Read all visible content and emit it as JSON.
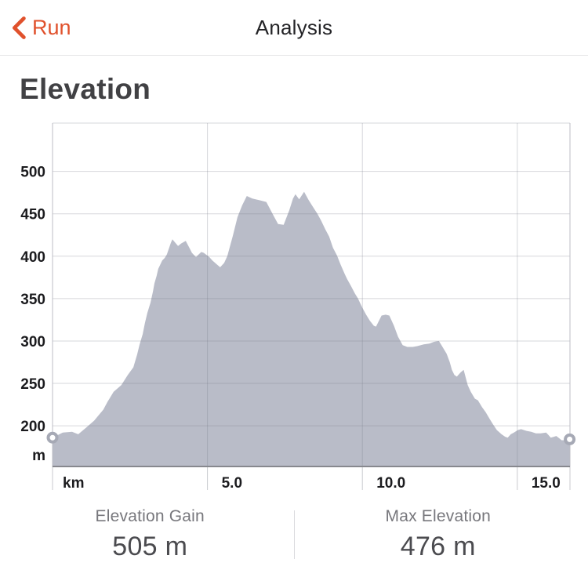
{
  "header": {
    "back_label": "Run",
    "title": "Analysis"
  },
  "section": {
    "title": "Elevation"
  },
  "colors": {
    "accent": "#e0512c",
    "area_fill": "#b9bcc8",
    "marker_ring": "#a6a9b5",
    "baseline": "#87888e",
    "grid": "rgba(120,122,136,0.30)",
    "plot_border": "#bcbdc5",
    "tick": "#c9cacf"
  },
  "stats": [
    {
      "label": "Elevation Gain",
      "value": "505 m"
    },
    {
      "label": "Max Elevation",
      "value": "476 m"
    }
  ],
  "chart_data": {
    "type": "area",
    "title": "Elevation",
    "x_unit": "km",
    "y_unit": "m",
    "x_range": [
      0,
      16.7
    ],
    "y_range_m": [
      152,
      557
    ],
    "x_ticks": [
      {
        "value": 5,
        "label": "5.0"
      },
      {
        "value": 10,
        "label": "10.0"
      },
      {
        "value": 15,
        "label": "15.0"
      }
    ],
    "y_ticks": [
      200,
      250,
      300,
      350,
      400,
      450,
      500
    ],
    "grid": true,
    "legend": false,
    "start_point": {
      "km": 0,
      "m": 186
    },
    "end_point": {
      "km": 16.69,
      "m": 184
    },
    "profile": [
      [
        0,
        186
      ],
      [
        0.33,
        192
      ],
      [
        0.63,
        193
      ],
      [
        0.83,
        190
      ],
      [
        1.09,
        198
      ],
      [
        1.34,
        206
      ],
      [
        1.64,
        219
      ],
      [
        1.77,
        228
      ],
      [
        1.97,
        240
      ],
      [
        2.22,
        248
      ],
      [
        2.43,
        260
      ],
      [
        2.61,
        269
      ],
      [
        2.73,
        284
      ],
      [
        2.81,
        296
      ],
      [
        2.91,
        308
      ],
      [
        2.98,
        321
      ],
      [
        3.06,
        333
      ],
      [
        3.16,
        345
      ],
      [
        3.24,
        358
      ],
      [
        3.29,
        368
      ],
      [
        3.36,
        377
      ],
      [
        3.41,
        385
      ],
      [
        3.49,
        391
      ],
      [
        3.54,
        395
      ],
      [
        3.62,
        398
      ],
      [
        3.69,
        402
      ],
      [
        3.82,
        416
      ],
      [
        3.87,
        420
      ],
      [
        4.05,
        412
      ],
      [
        4.15,
        415
      ],
      [
        4.3,
        418
      ],
      [
        4.43,
        409
      ],
      [
        4.5,
        404
      ],
      [
        4.63,
        399
      ],
      [
        4.8,
        405
      ],
      [
        4.88,
        404
      ],
      [
        5.06,
        399
      ],
      [
        5.16,
        395
      ],
      [
        5.28,
        391
      ],
      [
        5.41,
        387
      ],
      [
        5.54,
        392
      ],
      [
        5.64,
        400
      ],
      [
        5.82,
        424
      ],
      [
        5.97,
        446
      ],
      [
        6.12,
        460
      ],
      [
        6.27,
        471
      ],
      [
        6.45,
        468
      ],
      [
        6.68,
        466
      ],
      [
        6.9,
        464
      ],
      [
        7.13,
        448
      ],
      [
        7.28,
        438
      ],
      [
        7.46,
        437
      ],
      [
        7.64,
        454
      ],
      [
        7.76,
        468
      ],
      [
        7.84,
        473
      ],
      [
        7.96,
        467
      ],
      [
        8.12,
        476
      ],
      [
        8.27,
        466
      ],
      [
        8.39,
        459
      ],
      [
        8.55,
        450
      ],
      [
        8.67,
        442
      ],
      [
        8.8,
        432
      ],
      [
        8.93,
        423
      ],
      [
        9.05,
        410
      ],
      [
        9.18,
        401
      ],
      [
        9.3,
        390
      ],
      [
        9.43,
        379
      ],
      [
        9.51,
        373
      ],
      [
        9.63,
        365
      ],
      [
        9.76,
        356
      ],
      [
        9.86,
        350
      ],
      [
        9.99,
        340
      ],
      [
        10.12,
        331
      ],
      [
        10.24,
        324
      ],
      [
        10.37,
        318
      ],
      [
        10.44,
        317
      ],
      [
        10.62,
        330
      ],
      [
        10.75,
        331
      ],
      [
        10.87,
        330
      ],
      [
        11.02,
        318
      ],
      [
        11.15,
        305
      ],
      [
        11.3,
        295
      ],
      [
        11.45,
        293
      ],
      [
        11.63,
        293
      ],
      [
        11.78,
        294
      ],
      [
        11.98,
        296
      ],
      [
        12.16,
        297
      ],
      [
        12.31,
        299
      ],
      [
        12.47,
        300
      ],
      [
        12.62,
        291
      ],
      [
        12.72,
        285
      ],
      [
        12.82,
        275
      ],
      [
        12.89,
        266
      ],
      [
        12.97,
        260
      ],
      [
        13.05,
        258
      ],
      [
        13.17,
        263
      ],
      [
        13.27,
        266
      ],
      [
        13.4,
        248
      ],
      [
        13.5,
        240
      ],
      [
        13.63,
        232
      ],
      [
        13.73,
        230
      ],
      [
        13.86,
        222
      ],
      [
        13.98,
        216
      ],
      [
        14.11,
        208
      ],
      [
        14.21,
        202
      ],
      [
        14.34,
        195
      ],
      [
        14.49,
        190
      ],
      [
        14.61,
        187
      ],
      [
        14.69,
        186
      ],
      [
        14.79,
        190
      ],
      [
        14.89,
        192
      ],
      [
        15.02,
        195
      ],
      [
        15.12,
        196
      ],
      [
        15.3,
        194
      ],
      [
        15.45,
        193
      ],
      [
        15.6,
        191
      ],
      [
        15.75,
        191
      ],
      [
        15.93,
        192
      ],
      [
        16.01,
        189
      ],
      [
        16.08,
        186
      ],
      [
        16.18,
        187
      ],
      [
        16.26,
        188
      ],
      [
        16.36,
        185
      ],
      [
        16.43,
        183
      ],
      [
        16.54,
        183
      ],
      [
        16.61,
        184
      ],
      [
        16.69,
        184
      ]
    ]
  }
}
